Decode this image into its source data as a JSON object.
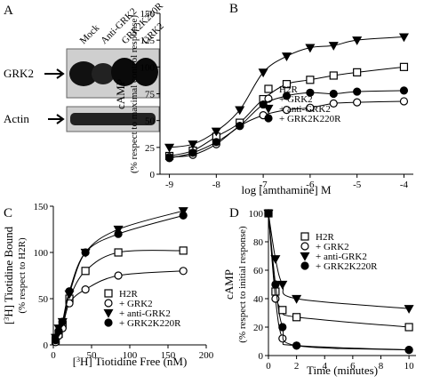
{
  "blot": {
    "panel": "A",
    "lanes": [
      "Mock",
      "Anti-GRK2",
      "GRK2K220R",
      "GRK2"
    ],
    "rows": [
      "GRK2",
      "Actin"
    ]
  },
  "chart_data": [
    {
      "type": "scatter",
      "panel": "B",
      "xlabel": [
        "log [amthamine] M"
      ],
      "ylabel": [
        [
          "cAMP"
        ],
        [
          "(% respect to maximal control response)"
        ]
      ],
      "x": [
        -9,
        -8.5,
        -8,
        -7.5,
        -7,
        -6.5,
        -6,
        -5.5,
        -5,
        -4
      ],
      "xlim": [
        -9.2,
        -3.8
      ],
      "xticks": [
        -9,
        -8,
        -7,
        -6,
        -5,
        -4
      ],
      "ylim": [
        0,
        150
      ],
      "yticks": [
        0,
        25,
        50,
        75,
        100,
        125,
        150
      ],
      "series": [
        {
          "name": "H2R",
          "marker": "square-open",
          "color": "#000000",
          "values": [
            17,
            22,
            35,
            48,
            70,
            84,
            88,
            92,
            95,
            100
          ]
        },
        {
          "name": "+ GRK2",
          "marker": "circle-open",
          "color": "#000000",
          "values": [
            16,
            18,
            28,
            45,
            55,
            60,
            62,
            66,
            67,
            68
          ]
        },
        {
          "name": "+ anti-GRK2",
          "marker": "triangle-down",
          "color": "#000000",
          "values": [
            25,
            28,
            40,
            60,
            95,
            110,
            118,
            120,
            125,
            128
          ]
        },
        {
          "name": "+ GRK2K220R",
          "marker": "circle",
          "color": "#000000",
          "values": [
            15,
            20,
            30,
            45,
            65,
            73,
            76,
            75,
            77,
            78
          ]
        }
      ]
    },
    {
      "type": "scatter",
      "panel": "C",
      "xlabel": [
        "[",
        "3",
        "H] Tiotidine Free (nM)"
      ],
      "ylabel": [
        [
          "[",
          "3",
          "H] Tiotidine Bound"
        ],
        [
          "(% respect to H2R)"
        ]
      ],
      "x": [
        3,
        7,
        12,
        21,
        42,
        85,
        170
      ],
      "xlim": [
        0,
        200
      ],
      "xticks": [
        0,
        50,
        100,
        150,
        200
      ],
      "ylim": [
        0,
        150
      ],
      "yticks": [
        0,
        50,
        100,
        150
      ],
      "series": [
        {
          "name": "H2R",
          "marker": "square-open",
          "color": "#000000",
          "values": [
            5,
            12,
            22,
            50,
            80,
            100,
            102
          ]
        },
        {
          "name": "+ GRK2",
          "marker": "circle-open",
          "color": "#000000",
          "values": [
            3,
            10,
            18,
            45,
            60,
            75,
            80
          ]
        },
        {
          "name": "+ anti-GRK2",
          "marker": "triangle-down",
          "color": "#000000",
          "values": [
            8,
            18,
            25,
            55,
            100,
            125,
            145
          ]
        },
        {
          "name": "+ GRK2K220R",
          "marker": "circle",
          "color": "#000000",
          "values": [
            5,
            15,
            25,
            58,
            100,
            120,
            140
          ]
        }
      ]
    },
    {
      "type": "scatter",
      "panel": "D",
      "xlabel": [
        "Time (minutes)"
      ],
      "ylabel": [
        [
          "cAMP"
        ],
        [
          "(% respect to initial response)"
        ]
      ],
      "x": [
        0,
        0.5,
        1,
        2,
        10
      ],
      "xlim": [
        0,
        10.5
      ],
      "xticks": [
        0,
        2,
        4,
        6,
        8,
        10
      ],
      "ylim": [
        0,
        100
      ],
      "yticks": [
        0,
        20,
        40,
        60,
        80,
        100
      ],
      "series": [
        {
          "name": "H2R",
          "marker": "square-open",
          "color": "#000000",
          "values": [
            100,
            45,
            32,
            27,
            20
          ]
        },
        {
          "name": "+ GRK2",
          "marker": "circle-open",
          "color": "#000000",
          "values": [
            100,
            40,
            12,
            7,
            4
          ]
        },
        {
          "name": "+ anti-GRK2",
          "marker": "triangle-down",
          "color": "#000000",
          "values": [
            100,
            68,
            50,
            40,
            33
          ]
        },
        {
          "name": "+ GRK2K220R",
          "marker": "circle",
          "color": "#000000",
          "values": [
            100,
            50,
            20,
            7,
            4
          ]
        }
      ]
    }
  ]
}
